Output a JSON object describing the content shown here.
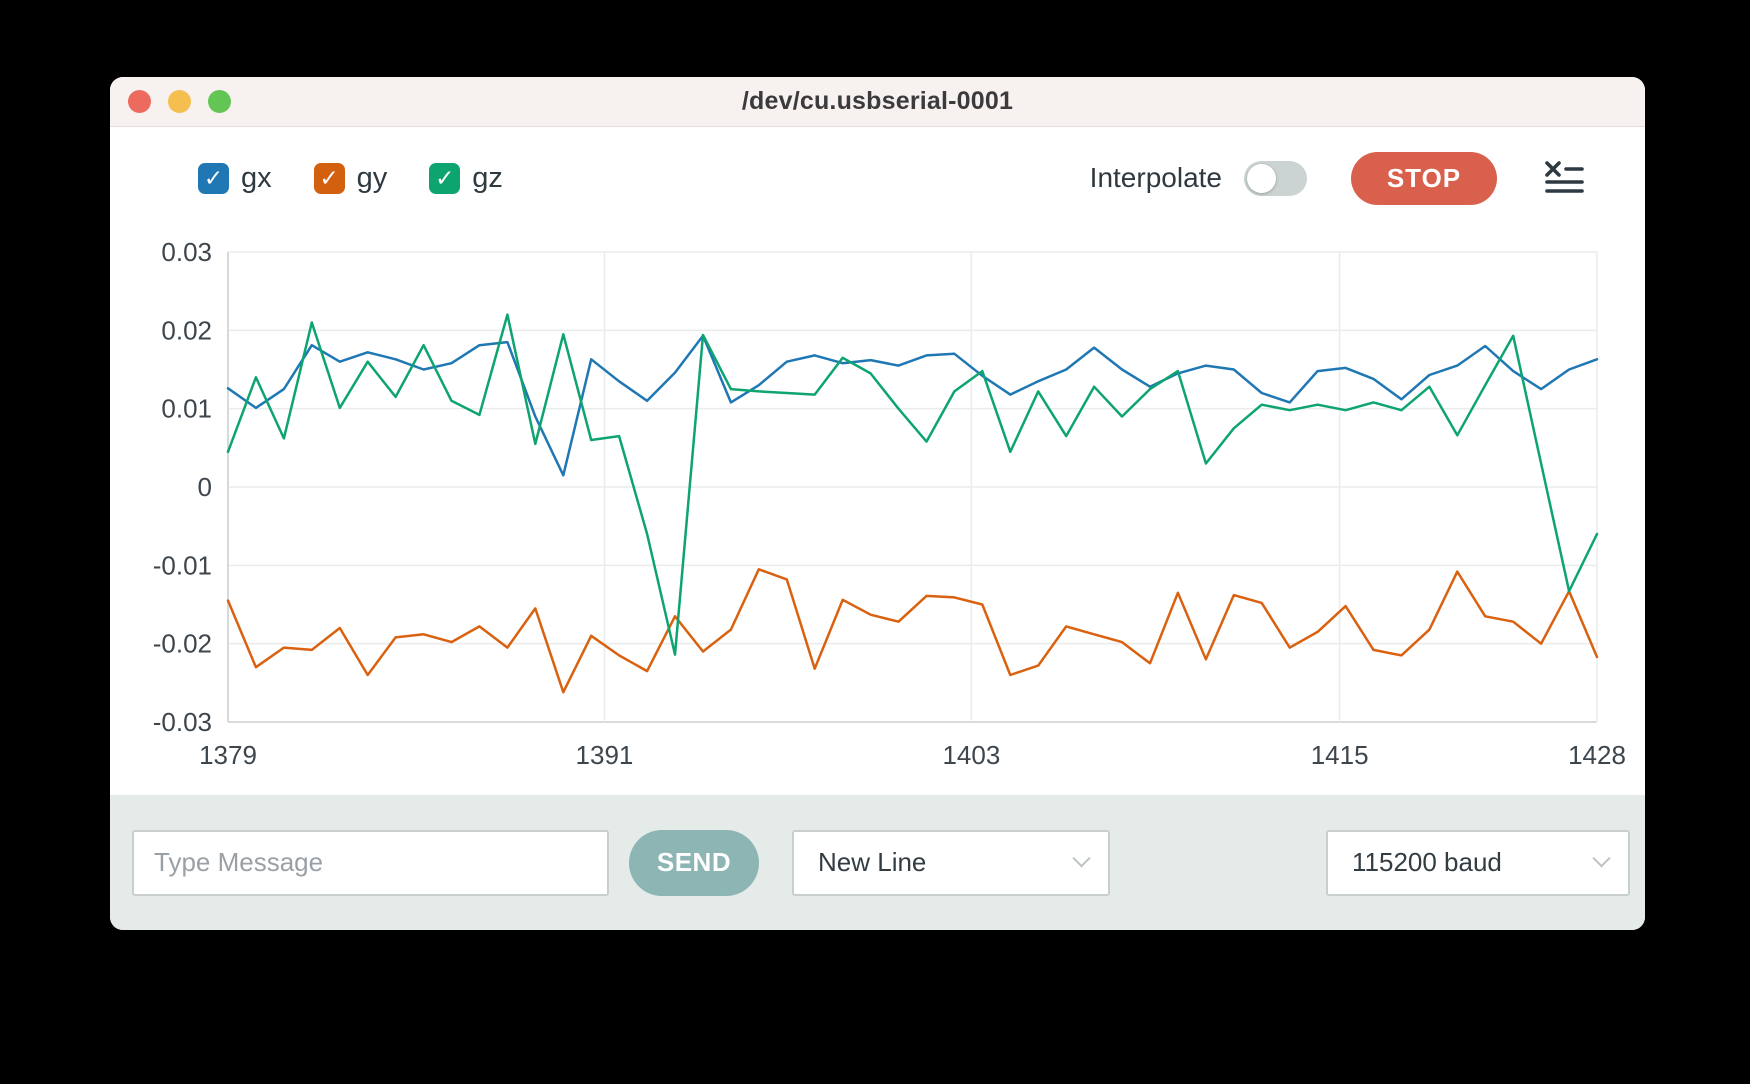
{
  "window": {
    "title": "/dev/cu.usbserial-0001",
    "traffic_lights": {
      "close": "#ed6a5e",
      "minimize": "#f5bf4f",
      "zoom": "#62c554"
    }
  },
  "toolbar": {
    "legend": [
      {
        "label": "gx",
        "color": "#1f77b4",
        "checked": true
      },
      {
        "label": "gy",
        "color": "#d2600e",
        "checked": true
      },
      {
        "label": "gz",
        "color": "#0ea470",
        "checked": true
      }
    ],
    "interpolate_label": "Interpolate",
    "interpolate_on": false,
    "stop_label": "STOP",
    "stop_color": "#d8604c",
    "clear_icon": "clear-log-icon"
  },
  "chart_data": {
    "type": "line",
    "title": "",
    "xlabel": "",
    "ylabel": "",
    "grid": true,
    "ylim": [
      -0.03,
      0.03
    ],
    "y_ticks": [
      0.03,
      0.02,
      0.01,
      0,
      -0.01,
      -0.02,
      -0.03
    ],
    "y_tick_labels": [
      "0.03",
      "0.02",
      "0.01",
      "0",
      "-0.01",
      "-0.02",
      "-0.03"
    ],
    "x_ticks": [
      {
        "label": "1379",
        "f": 0.0
      },
      {
        "label": "1391",
        "f": 0.275
      },
      {
        "label": "1403",
        "f": 0.543
      },
      {
        "label": "1415",
        "f": 0.812
      },
      {
        "label": "1428",
        "f": 1.0
      }
    ],
    "x_range": [
      1379,
      1428
    ],
    "series": [
      {
        "name": "gx",
        "color": "#1f77b4",
        "values": [
          0.0126,
          0.0101,
          0.0125,
          0.0181,
          0.016,
          0.0172,
          0.0163,
          0.015,
          0.0158,
          0.0181,
          0.0185,
          0.009,
          0.0015,
          0.0163,
          0.0135,
          0.011,
          0.0146,
          0.0193,
          0.0108,
          0.013,
          0.016,
          0.0168,
          0.0158,
          0.0162,
          0.0155,
          0.0168,
          0.017,
          0.0142,
          0.0118,
          0.0135,
          0.015,
          0.0178,
          0.015,
          0.0128,
          0.0145,
          0.0155,
          0.015,
          0.012,
          0.0108,
          0.0148,
          0.0152,
          0.0138,
          0.0112,
          0.0143,
          0.0155,
          0.018,
          0.0148,
          0.0125,
          0.015,
          0.0163
        ]
      },
      {
        "name": "gy",
        "color": "#d9610f",
        "values": [
          -0.0145,
          -0.023,
          -0.0205,
          -0.0208,
          -0.018,
          -0.024,
          -0.0192,
          -0.0188,
          -0.0198,
          -0.0178,
          -0.0205,
          -0.0155,
          -0.0262,
          -0.019,
          -0.0215,
          -0.0235,
          -0.0165,
          -0.021,
          -0.0182,
          -0.0105,
          -0.0118,
          -0.0232,
          -0.0144,
          -0.0163,
          -0.0172,
          -0.0139,
          -0.0141,
          -0.015,
          -0.024,
          -0.0228,
          -0.0178,
          -0.0188,
          -0.0198,
          -0.0225,
          -0.0135,
          -0.022,
          -0.0138,
          -0.0148,
          -0.0205,
          -0.0185,
          -0.0152,
          -0.0208,
          -0.0215,
          -0.0182,
          -0.0108,
          -0.0165,
          -0.0172,
          -0.02,
          -0.0133,
          -0.0217
        ]
      },
      {
        "name": "gz",
        "color": "#0ea470",
        "values": [
          0.0045,
          0.014,
          0.0062,
          0.021,
          0.0101,
          0.016,
          0.0115,
          0.0181,
          0.011,
          0.0092,
          0.022,
          0.0055,
          0.0195,
          0.006,
          0.0065,
          -0.006,
          -0.0214,
          0.0194,
          0.0125,
          0.0122,
          0.012,
          0.0118,
          0.0165,
          0.0145,
          0.01,
          0.0058,
          0.0122,
          0.0148,
          0.0045,
          0.0122,
          0.0065,
          0.0128,
          0.009,
          0.0125,
          0.0148,
          0.003,
          0.0075,
          0.0105,
          0.0098,
          0.0105,
          0.0098,
          0.0108,
          0.0098,
          0.0128,
          0.0066,
          0.013,
          0.0193,
          0.003,
          -0.0133,
          -0.006
        ]
      }
    ]
  },
  "bottom_bar": {
    "message_placeholder": "Type Message",
    "send_label": "SEND",
    "line_ending_value": "New Line",
    "baud_value": "115200 baud",
    "send_color": "#8cb5b3"
  }
}
